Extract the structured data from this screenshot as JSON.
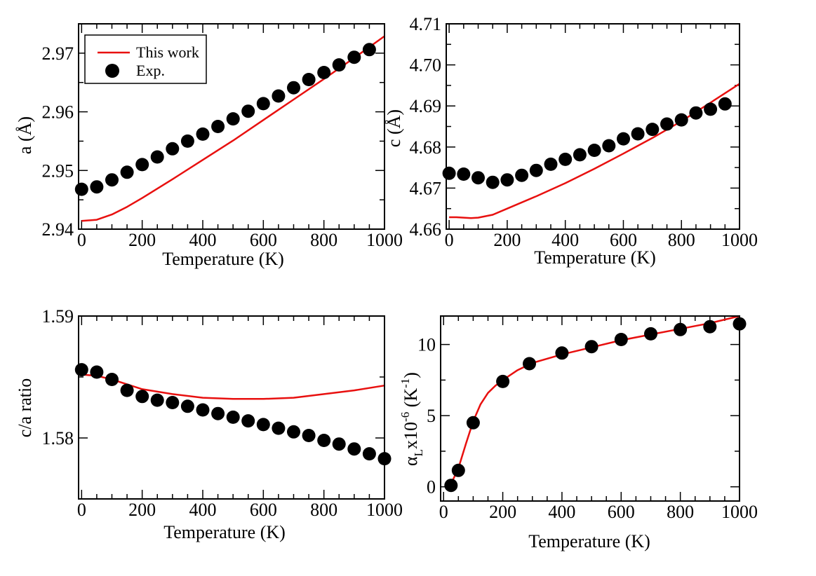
{
  "colors": {
    "model": "#e8100f",
    "exp": "#000000",
    "axis": "#000000"
  },
  "chart_data": [
    {
      "id": "a",
      "type": "line",
      "title": "",
      "xlabel": "Temperature (K)",
      "ylabel": "a (Å)",
      "xlim": [
        -10,
        1000
      ],
      "ylim": [
        2.94,
        2.975
      ],
      "xticks": [
        0,
        200,
        400,
        600,
        800,
        1000
      ],
      "xtick_labels": [
        "0",
        "200",
        "400",
        "600",
        "800",
        "1000"
      ],
      "yticks": [
        2.94,
        2.95,
        2.96,
        2.97
      ],
      "ytick_labels": [
        "2.94",
        "2.95",
        "2.96",
        "2.97"
      ],
      "legend": {
        "position": "top-left",
        "entries": [
          "This work",
          "Exp."
        ]
      },
      "series": [
        {
          "name": "This work",
          "kind": "line",
          "x": [
            0,
            50,
            100,
            150,
            200,
            300,
            400,
            500,
            600,
            700,
            800,
            900,
            1000
          ],
          "y": [
            2.9414,
            2.9416,
            2.9425,
            2.9438,
            2.9453,
            2.9485,
            2.9518,
            2.9551,
            2.9586,
            2.9621,
            2.9656,
            2.9692,
            2.9729
          ]
        },
        {
          "name": "Exp.",
          "kind": "scatter",
          "x": [
            0,
            50,
            100,
            150,
            200,
            250,
            300,
            350,
            400,
            450,
            500,
            550,
            600,
            650,
            700,
            750,
            800,
            850,
            900,
            950
          ],
          "y": [
            2.9468,
            2.9472,
            2.9484,
            2.9497,
            2.951,
            2.9523,
            2.9537,
            2.955,
            2.9562,
            2.9575,
            2.9588,
            2.9601,
            2.9614,
            2.9627,
            2.9641,
            2.9655,
            2.9667,
            2.968,
            2.9693,
            2.9706
          ]
        }
      ]
    },
    {
      "id": "c",
      "type": "line",
      "title": "",
      "xlabel": "Temperature (K)",
      "ylabel": "c (Å)",
      "xlim": [
        -10,
        1000
      ],
      "ylim": [
        4.66,
        4.71
      ],
      "xticks": [
        0,
        200,
        400,
        600,
        800,
        1000
      ],
      "xtick_labels": [
        "0",
        "200",
        "400",
        "600",
        "800",
        "1000"
      ],
      "yticks": [
        4.66,
        4.67,
        4.68,
        4.69,
        4.7,
        4.71
      ],
      "ytick_labels": [
        "4.66",
        "4.67",
        "4.68",
        "4.69",
        "4.70",
        "4.71"
      ],
      "series": [
        {
          "name": "This work",
          "kind": "line",
          "x": [
            0,
            25,
            50,
            75,
            100,
            150,
            200,
            300,
            400,
            500,
            600,
            700,
            800,
            900,
            1000
          ],
          "y": [
            4.6629,
            4.6629,
            4.6628,
            4.6627,
            4.6628,
            4.6635,
            4.665,
            4.668,
            4.6712,
            4.6747,
            4.6784,
            4.6822,
            4.6863,
            4.6908,
            4.6954
          ]
        },
        {
          "name": "Exp.",
          "kind": "scatter",
          "x": [
            0,
            50,
            100,
            150,
            200,
            250,
            300,
            350,
            400,
            450,
            500,
            550,
            600,
            650,
            700,
            750,
            800,
            850,
            900,
            950
          ],
          "y": [
            4.6736,
            4.6734,
            4.6725,
            4.6714,
            4.672,
            4.6731,
            4.6743,
            4.6758,
            4.677,
            4.6781,
            4.6792,
            4.6803,
            4.682,
            4.6832,
            4.6843,
            4.6856,
            4.6866,
            4.6883,
            4.6892,
            4.6905
          ]
        }
      ]
    },
    {
      "id": "ca",
      "type": "line",
      "title": "",
      "xlabel": "Temperature (K)",
      "ylabel": "c/a ratio",
      "xlim": [
        -10,
        1000
      ],
      "ylim": [
        1.575,
        1.59
      ],
      "xticks": [
        0,
        200,
        400,
        600,
        800,
        1000
      ],
      "xtick_labels": [
        "0",
        "200",
        "400",
        "600",
        "800",
        "1000"
      ],
      "yticks": [
        1.58,
        1.59
      ],
      "ytick_labels": [
        "1.58",
        "1.59"
      ],
      "series": [
        {
          "name": "This work",
          "kind": "line",
          "x": [
            0,
            50,
            100,
            150,
            200,
            300,
            400,
            500,
            600,
            700,
            800,
            900,
            1000
          ],
          "y": [
            1.5852,
            1.5851,
            1.5848,
            1.5844,
            1.584,
            1.5836,
            1.5833,
            1.5832,
            1.5832,
            1.5833,
            1.5836,
            1.5839,
            1.5843
          ]
        },
        {
          "name": "Exp.",
          "kind": "scatter",
          "x": [
            0,
            50,
            100,
            150,
            200,
            250,
            300,
            350,
            400,
            450,
            500,
            550,
            600,
            650,
            700,
            750,
            800,
            850,
            900,
            950,
            1000
          ],
          "y": [
            1.5856,
            1.5854,
            1.5848,
            1.5839,
            1.5834,
            1.5831,
            1.5829,
            1.5826,
            1.5823,
            1.582,
            1.5817,
            1.5814,
            1.5811,
            1.5808,
            1.5805,
            1.5802,
            1.5798,
            1.5795,
            1.5791,
            1.5787,
            1.5783
          ]
        }
      ]
    },
    {
      "id": "alpha",
      "type": "line",
      "title": "",
      "xlabel": "Temperature (K)",
      "ylabel_parts": [
        "α",
        "L",
        "x10",
        "-6",
        " (K",
        "-1",
        ")"
      ],
      "xlim": [
        -10,
        1000
      ],
      "ylim": [
        -1,
        12
      ],
      "xticks": [
        0,
        200,
        400,
        600,
        800,
        1000
      ],
      "xtick_labels": [
        "0",
        "200",
        "400",
        "600",
        "800",
        "1000"
      ],
      "yticks": [
        0,
        5,
        10
      ],
      "ytick_labels": [
        "0",
        "5",
        "10"
      ],
      "series": [
        {
          "name": "This work",
          "kind": "line",
          "x": [
            25,
            50,
            75,
            100,
            125,
            150,
            175,
            200,
            250,
            300,
            400,
            500,
            600,
            700,
            800,
            900,
            1000
          ],
          "y": [
            0.2,
            1.3,
            3.0,
            4.6,
            5.8,
            6.6,
            7.1,
            7.5,
            8.2,
            8.7,
            9.3,
            9.8,
            10.3,
            10.7,
            11.1,
            11.5,
            12.0
          ]
        },
        {
          "name": "Exp.",
          "kind": "scatter",
          "x": [
            25,
            50,
            100,
            200,
            290,
            400,
            500,
            600,
            700,
            800,
            900,
            1000
          ],
          "y": [
            0.1,
            1.15,
            4.5,
            7.4,
            8.65,
            9.4,
            9.85,
            10.35,
            10.75,
            11.05,
            11.25,
            11.45
          ]
        }
      ]
    }
  ]
}
